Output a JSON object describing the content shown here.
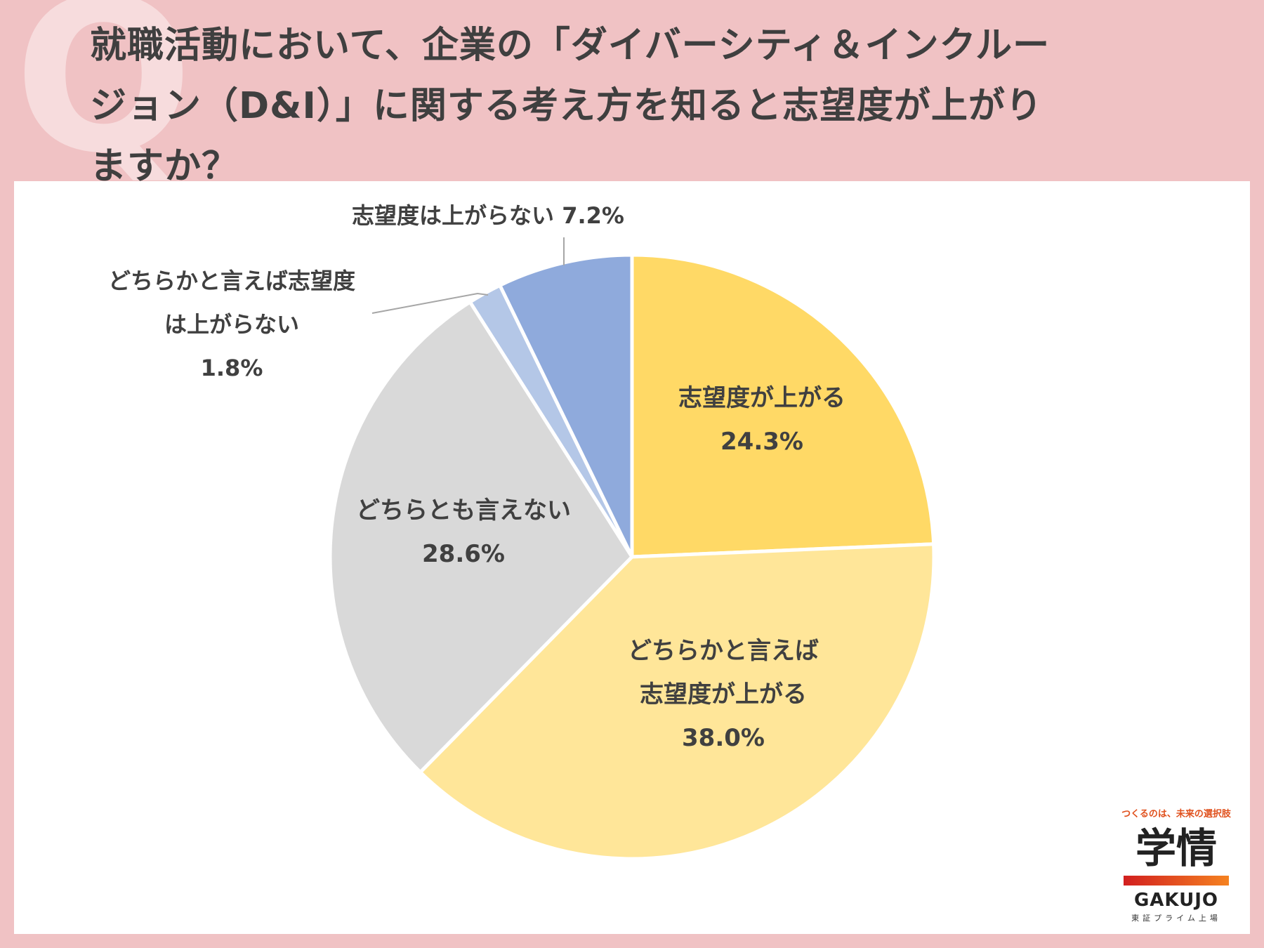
{
  "header": {
    "q_mark": "Q",
    "title_lines": [
      "就職活動において、企業の「ダイバーシティ＆インクルー",
      "ジョン（D&I）」に関する考え方を知ると志望度が上がり",
      "ますか？"
    ]
  },
  "chart_data": {
    "type": "pie",
    "title": "",
    "slices": [
      {
        "label_lines": [
          "志望度が上がる"
        ],
        "value": 24.3,
        "value_label": "24.3%",
        "color": "#ffd966"
      },
      {
        "label_lines": [
          "どちらかと言えば",
          "志望度が上がる"
        ],
        "value": 38.0,
        "value_label": "38.0%",
        "color": "#ffe699"
      },
      {
        "label_lines": [
          "どちらとも言えない"
        ],
        "value": 28.6,
        "value_label": "28.6%",
        "color": "#d9d9d9"
      },
      {
        "label_lines": [
          "どちらかと言えば志望度",
          "は上がらない"
        ],
        "value": 1.8,
        "value_label": "1.8%",
        "color": "#b4c7e7"
      },
      {
        "label_lines": [
          "志望度は上がらない"
        ],
        "value": 7.2,
        "value_label": "7.2%",
        "color": "#8faadc"
      }
    ]
  },
  "logo": {
    "tagline": "つくるのは、未来の選択肢",
    "mark": "学情",
    "brand": "GAKUJO",
    "sub": "東証プライム上場"
  }
}
